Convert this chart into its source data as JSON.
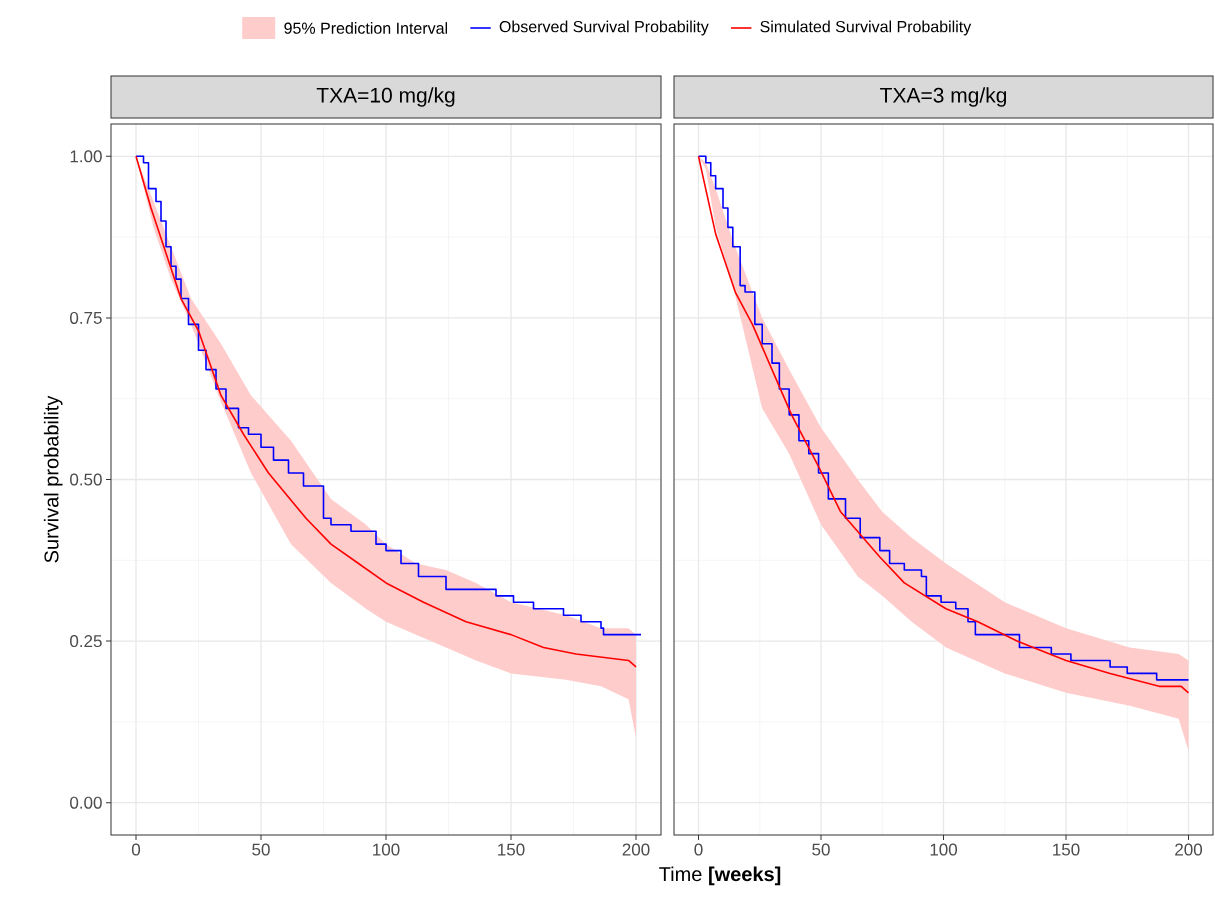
{
  "chart_data": [
    {
      "type": "line",
      "title": "TXA=10 mg/kg",
      "xlabel": "Time **[weeks]**",
      "ylabel": "Survival probability",
      "legend": "top",
      "grid": true,
      "xlim": [
        -10,
        210
      ],
      "ylim": [
        -0.05,
        1.05
      ],
      "xticks": [
        0,
        50,
        100,
        150,
        200
      ],
      "yticks": [
        {
          "value": 0,
          "label": "0.00"
        },
        {
          "value": 0.25,
          "label": "0.25"
        },
        {
          "value": 0.5,
          "label": "0.50"
        },
        {
          "value": 0.75,
          "label": "0.75"
        },
        {
          "value": 1,
          "label": "1.00"
        }
      ],
      "series": [
        {
          "name": "95% Prediction Interval",
          "type": "area",
          "color": "#ffcccc",
          "x": [
            0,
            7,
            14,
            22,
            34,
            46,
            62,
            78,
            92,
            100,
            112,
            124,
            136,
            150,
            172,
            186,
            197,
            200
          ],
          "values": [
            null,
            null,
            null,
            null,
            null,
            null,
            null,
            null,
            null,
            null,
            null,
            null,
            null,
            null,
            null,
            null,
            null,
            null
          ],
          "upper": [
            1.0,
            0.93,
            0.86,
            0.78,
            0.71,
            0.63,
            0.56,
            0.47,
            0.43,
            0.4,
            0.37,
            0.36,
            0.34,
            0.31,
            0.29,
            0.27,
            0.27,
            0.26
          ],
          "lower": [
            1.0,
            0.89,
            0.81,
            0.74,
            0.62,
            0.51,
            0.4,
            0.34,
            0.3,
            0.28,
            0.26,
            0.24,
            0.22,
            0.2,
            0.19,
            0.18,
            0.16,
            0.1
          ]
        },
        {
          "name": "Observed Survival Probability",
          "type": "step",
          "color": "#0000ff",
          "x": [
            0,
            2,
            3,
            5,
            8,
            10,
            12,
            14,
            16,
            18,
            21,
            25,
            28,
            32,
            36,
            41,
            45,
            50,
            55,
            61,
            67,
            75,
            78,
            86,
            96,
            100,
            106,
            113,
            124,
            132,
            144,
            151,
            159,
            171,
            178,
            186,
            187,
            202
          ],
          "values": [
            1.0,
            1.0,
            0.99,
            0.95,
            0.93,
            0.9,
            0.86,
            0.83,
            0.81,
            0.78,
            0.74,
            0.7,
            0.67,
            0.64,
            0.61,
            0.58,
            0.57,
            0.55,
            0.53,
            0.51,
            0.49,
            0.44,
            0.43,
            0.42,
            0.4,
            0.39,
            0.37,
            0.35,
            0.33,
            0.33,
            0.32,
            0.31,
            0.3,
            0.29,
            0.28,
            0.27,
            0.26,
            0.26
          ]
        },
        {
          "name": "Simulated Survival Probability",
          "type": "line",
          "color": "#ff0000",
          "x": [
            0,
            6,
            12,
            18,
            25,
            34,
            43,
            53,
            68,
            78,
            89,
            100,
            115,
            132,
            150,
            163,
            176,
            197,
            200
          ],
          "values": [
            1.0,
            0.92,
            0.85,
            0.78,
            0.73,
            0.63,
            0.57,
            0.51,
            0.44,
            0.4,
            0.37,
            0.34,
            0.31,
            0.28,
            0.26,
            0.24,
            0.23,
            0.22,
            0.21
          ]
        }
      ]
    },
    {
      "type": "line",
      "title": "TXA=3 mg/kg",
      "grid": true,
      "tick_labels": "x",
      "xlim": [
        -10,
        210
      ],
      "ylim": [
        -0.05,
        1.05
      ],
      "xticks": [
        0,
        50,
        100,
        150,
        200
      ],
      "yticks": [
        {
          "value": 0,
          "label": null
        },
        {
          "value": 0.25,
          "label": null
        },
        {
          "value": 0.5,
          "label": null
        },
        {
          "value": 0.75,
          "label": null
        },
        {
          "value": 1,
          "label": null
        }
      ],
      "series": [
        {
          "type": "area",
          "color": "#ffcccc",
          "x": [
            0,
            3,
            7,
            14,
            26,
            37,
            50,
            65,
            75,
            87,
            101,
            125,
            150,
            176,
            196,
            200
          ],
          "values": [
            null,
            null,
            null,
            null,
            null,
            null,
            null,
            null,
            null,
            null,
            null,
            null,
            null,
            null,
            null,
            null
          ],
          "upper": [
            1.0,
            0.99,
            0.95,
            0.87,
            0.75,
            0.67,
            0.58,
            0.5,
            0.45,
            0.41,
            0.37,
            0.31,
            0.27,
            0.24,
            0.23,
            0.22
          ],
          "lower": [
            1.0,
            0.98,
            0.89,
            0.8,
            0.61,
            0.54,
            0.43,
            0.35,
            0.32,
            0.28,
            0.24,
            0.2,
            0.17,
            0.15,
            0.13,
            0.08
          ]
        },
        {
          "type": "step",
          "color": "#0000ff",
          "x": [
            0,
            1,
            3,
            5,
            7,
            10,
            12,
            14,
            17,
            19,
            23,
            26,
            30,
            33,
            37,
            41,
            45,
            49,
            53,
            60,
            66,
            74,
            78,
            84,
            91,
            93,
            99,
            105,
            110,
            113,
            127,
            131,
            144,
            152,
            162,
            168,
            175,
            185,
            187,
            200
          ],
          "values": [
            1.0,
            1.0,
            0.99,
            0.97,
            0.95,
            0.92,
            0.89,
            0.86,
            0.8,
            0.79,
            0.74,
            0.71,
            0.68,
            0.64,
            0.6,
            0.56,
            0.54,
            0.51,
            0.47,
            0.44,
            0.41,
            0.39,
            0.37,
            0.36,
            0.35,
            0.32,
            0.31,
            0.3,
            0.28,
            0.26,
            0.26,
            0.24,
            0.23,
            0.22,
            0.22,
            0.21,
            0.2,
            0.2,
            0.19,
            0.19
          ]
        },
        {
          "type": "line",
          "color": "#ff0000",
          "x": [
            0,
            7,
            15,
            22,
            30,
            38,
            49,
            58,
            74,
            84,
            101,
            114,
            130,
            150,
            168,
            188,
            197,
            200
          ],
          "values": [
            1.0,
            0.88,
            0.79,
            0.74,
            0.67,
            0.6,
            0.52,
            0.45,
            0.38,
            0.34,
            0.3,
            0.28,
            0.25,
            0.22,
            0.2,
            0.18,
            0.18,
            0.17
          ]
        }
      ]
    }
  ]
}
